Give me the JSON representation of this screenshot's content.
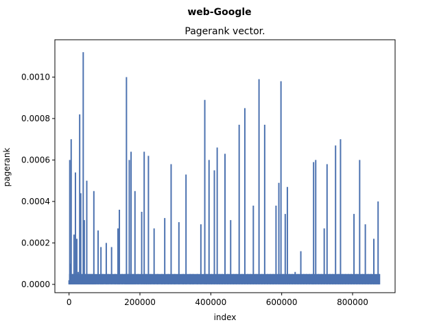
{
  "chart_data": {
    "type": "line",
    "suptitle": "web-Google",
    "title": "Pagerank vector.",
    "xlabel": "index",
    "ylabel": "pagerank",
    "xlim": [
      -40000,
      920000
    ],
    "ylim": [
      -4e-05,
      0.00118
    ],
    "xticks": [
      0,
      200000,
      400000,
      600000,
      800000
    ],
    "xtick_labels": [
      "0",
      "200000",
      "400000",
      "600000",
      "800000"
    ],
    "yticks": [
      0.0,
      0.0002,
      0.0004,
      0.0006,
      0.0008,
      0.001
    ],
    "ytick_labels": [
      "0.0000",
      "0.0002",
      "0.0004",
      "0.0006",
      "0.0008",
      "0.0010"
    ],
    "grid": false,
    "line_color": "#4c72b0",
    "series": [
      {
        "x": [
          0,
          2000,
          4000,
          6000,
          10000,
          14000,
          18000,
          22000,
          26000,
          30000,
          33000,
          36000,
          40000,
          43000,
          46000,
          50000,
          54000,
          58000,
          62000,
          66000,
          70000,
          75000,
          82000,
          90000,
          95000,
          105000,
          110000,
          120000,
          130000,
          138000,
          142000,
          150000,
          158000,
          162000,
          166000,
          170000,
          175000,
          180000,
          186000,
          195000,
          205000,
          212000,
          218000,
          224000,
          230000,
          240000,
          250000,
          262000,
          270000,
          280000,
          288000,
          298000,
          310000,
          322000,
          330000,
          342000,
          350000,
          362000,
          372000,
          383000,
          388000,
          395000,
          402000,
          410000,
          418000,
          425000,
          432000,
          440000,
          448000,
          456000,
          464000,
          472000,
          480000,
          488000,
          496000,
          504000,
          512000,
          520000,
          528000,
          536000,
          544000,
          552000,
          560000,
          568000,
          576000,
          584000,
          592000,
          598000,
          604000,
          610000,
          616000,
          622000,
          630000,
          638000,
          646000,
          654000,
          662000,
          670000,
          678000,
          686000,
          690000,
          696000,
          704000,
          712000,
          720000,
          728000,
          736000,
          744000,
          752000,
          760000,
          766000,
          772000,
          780000,
          788000,
          796000,
          804000,
          812000,
          820000,
          828000,
          836000,
          844000,
          852000,
          860000,
          866000,
          872000,
          876000
        ],
        "values": [
          2e-05,
          0.0006,
          0.0001,
          0.0007,
          5e-05,
          0.00024,
          0.00054,
          0.00022,
          6e-05,
          0.00082,
          0.00044,
          5e-05,
          0.00112,
          0.00031,
          5e-05,
          0.0005,
          5e-05,
          5e-05,
          5e-05,
          5e-05,
          0.00045,
          4e-05,
          0.00026,
          0.00018,
          5e-05,
          0.0002,
          5e-05,
          0.00018,
          5e-05,
          0.00027,
          0.00036,
          5e-05,
          5e-05,
          0.001,
          5e-05,
          0.0006,
          0.00064,
          5e-05,
          0.00045,
          5e-05,
          0.00035,
          0.00064,
          5e-05,
          0.00062,
          5e-05,
          0.00027,
          5e-05,
          5e-05,
          0.00032,
          5e-05,
          0.00058,
          5e-05,
          0.0003,
          5e-05,
          0.00053,
          5e-05,
          5e-05,
          5e-05,
          0.00029,
          0.00089,
          5e-05,
          0.0006,
          5e-05,
          0.00055,
          0.00066,
          5e-05,
          5e-05,
          0.00063,
          5e-05,
          0.00031,
          5e-05,
          5e-05,
          0.00077,
          5e-05,
          0.00085,
          5e-05,
          5e-05,
          0.00038,
          5e-05,
          0.00099,
          5e-05,
          0.00077,
          5e-05,
          5e-05,
          5e-05,
          0.00038,
          0.00049,
          0.00098,
          5e-05,
          0.00034,
          0.00047,
          5e-05,
          5e-05,
          6e-05,
          5e-05,
          0.00016,
          5e-05,
          5e-05,
          5e-05,
          5e-05,
          0.00059,
          0.0006,
          5e-05,
          5e-05,
          0.00027,
          0.00058,
          5e-05,
          5e-05,
          0.00067,
          5e-05,
          0.0007,
          5e-05,
          5e-05,
          5e-05,
          5e-05,
          0.00034,
          5e-05,
          0.0006,
          5e-05,
          0.00029,
          5e-05,
          5e-05,
          0.00022,
          4e-05,
          0.0004,
          5e-05
        ]
      }
    ]
  }
}
